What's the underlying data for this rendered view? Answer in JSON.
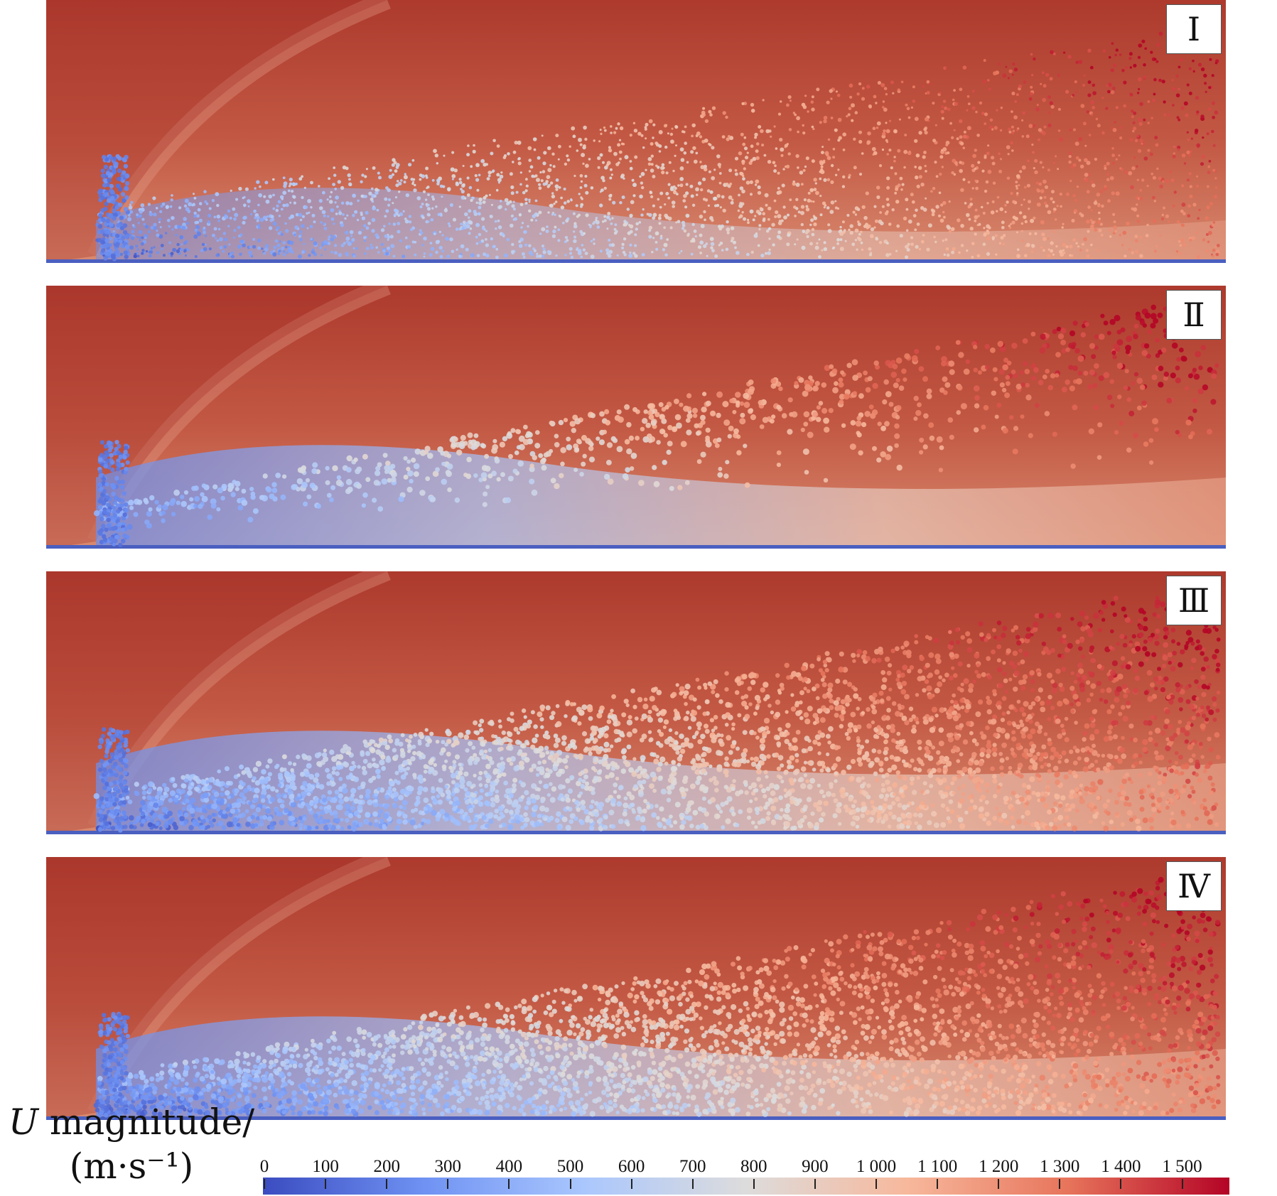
{
  "figure": {
    "panels": [
      {
        "id": "panel-1",
        "label": "Ⅰ",
        "style": "dense-cloud"
      },
      {
        "id": "panel-2",
        "label": "Ⅱ",
        "style": "sparse"
      },
      {
        "id": "panel-3",
        "label": "Ⅲ",
        "style": "dense-particles"
      },
      {
        "id": "panel-4",
        "label": "Ⅳ",
        "style": "dense-particles"
      }
    ],
    "legend": {
      "title_var": "U",
      "title_rest": " magnitude/",
      "unit_line": "(m·s⁻¹)",
      "ticks": [
        "0",
        "100",
        "200",
        "300",
        "400",
        "500",
        "600",
        "700",
        "800",
        "900",
        "1 000",
        "1 100",
        "1 200",
        "1 300",
        "1 400",
        "1 500"
      ],
      "min": 0,
      "max": 1575,
      "colormap": [
        "#3b4cc0",
        "#6f92f3",
        "#aac7fd",
        "#dddcdc",
        "#f7b89c",
        "#e7745b",
        "#b40426"
      ]
    }
  }
}
